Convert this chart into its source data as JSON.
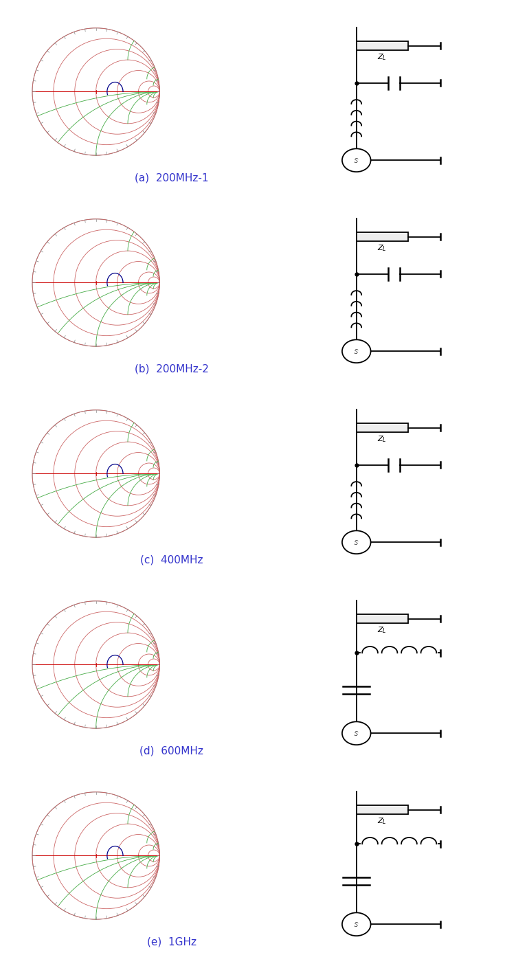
{
  "panels": [
    {
      "label": "(a)  200MHz-1",
      "circuit": "type_abc"
    },
    {
      "label": "(b)  200MHz-2",
      "circuit": "type_abc"
    },
    {
      "label": "(c)  400MHz",
      "circuit": "type_abc"
    },
    {
      "label": "(d)  600MHz",
      "circuit": "type_de"
    },
    {
      "label": "(e)  1GHz",
      "circuit": "type_de"
    }
  ],
  "label_color": "#3333cc",
  "line_color": "#000000",
  "smith_outer_color": "#888888",
  "smith_r_color": "#cc6666",
  "smith_x_color": "#44aa44",
  "smith_axis_color": "#cc0000",
  "smith_traj_color": "#000088",
  "bg_color": "#ffffff",
  "label_fontsize": 11
}
